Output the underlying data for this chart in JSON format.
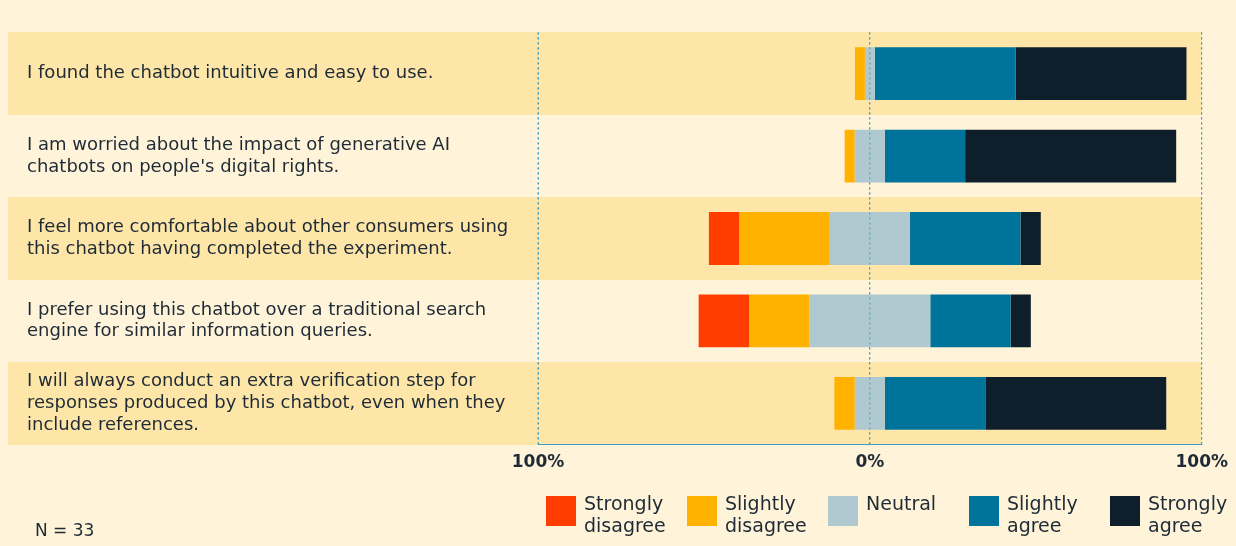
{
  "chart_data": {
    "type": "bar",
    "orientation": "horizontal",
    "categories": [
      "I found the chatbot intuitive and easy to use.",
      "I am worried about the impact of generative AI chatbots on people's digital rights.",
      "I feel more comfortable about other consumers using this chatbot having completed the experiment.",
      "I prefer using this chatbot over a traditional search engine for similar information queries.",
      "I will always conduct an extra verification step for responses produced by this chatbot, even when they include references."
    ],
    "series": [
      {
        "name": "Strongly disagree",
        "color": "#ff3d00",
        "values": [
          null,
          null,
          9.1,
          15.2,
          null
        ],
        "base": [
          null,
          null,
          -48.5,
          -51.6,
          null
        ]
      },
      {
        "name": "Slightly disagree",
        "color": "#ffb300",
        "values": [
          3.0,
          3.0,
          27.3,
          18.2,
          6.1
        ],
        "base": [
          -4.5,
          -7.6,
          -39.4,
          -36.4,
          -10.7
        ]
      },
      {
        "name": "Neutral",
        "color": "#b0c8d0",
        "values": [
          3.0,
          9.1,
          24.2,
          36.4,
          9.1
        ],
        "base": [
          -1.5,
          -4.6,
          -12.1,
          -18.2,
          -4.6
        ]
      },
      {
        "name": "Slightly agree",
        "color": "#00739a",
        "values": [
          42.4,
          24.2,
          33.3,
          24.2,
          30.3
        ],
        "base": [
          1.5,
          4.5,
          12.1,
          18.2,
          4.5
        ]
      },
      {
        "name": "Strongly agree",
        "color": "#0f1e2b",
        "values": [
          51.5,
          63.6,
          6.1,
          6.1,
          54.5
        ],
        "base": [
          43.9,
          28.7,
          45.4,
          42.4,
          34.8
        ]
      }
    ],
    "xlim": [
      -100,
      100
    ],
    "xticks": [
      {
        "value": -100,
        "label": "100%"
      },
      {
        "value": 0,
        "label": "0%"
      },
      {
        "value": 100,
        "label": "100%"
      }
    ],
    "grid": "x",
    "legend": "bottom right",
    "annotations": [
      "N = 33"
    ]
  }
}
